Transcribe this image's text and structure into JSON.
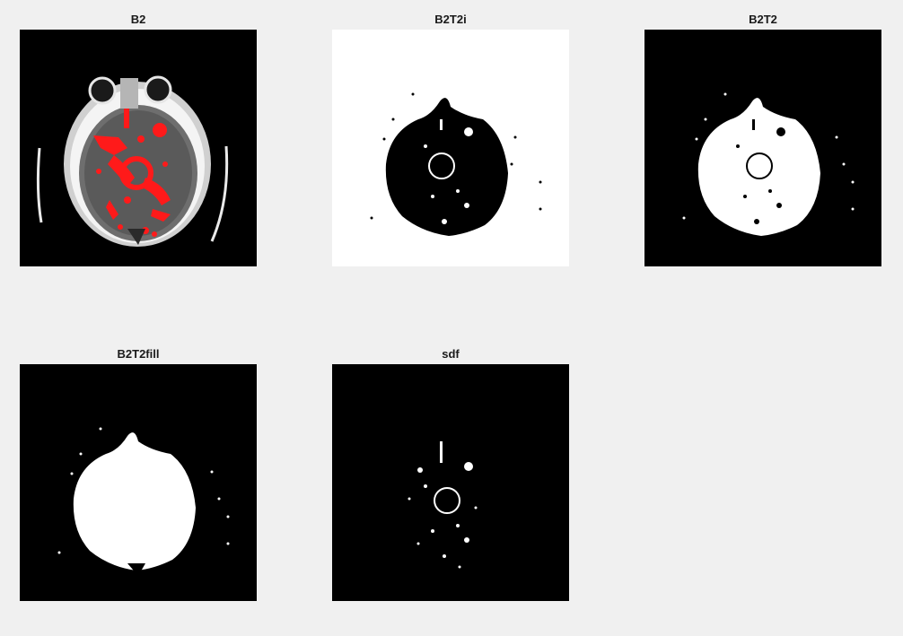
{
  "figure": {
    "panels": [
      {
        "title": "B2",
        "kind": "ct-with-red-overlay",
        "background": "#000000",
        "foreground": "#ffffff",
        "overlay": "#ff0000"
      },
      {
        "title": "B2T2i",
        "kind": "inverted-mask",
        "background": "#ffffff",
        "foreground": "#000000"
      },
      {
        "title": "B2T2",
        "kind": "binary-mask",
        "background": "#000000",
        "foreground": "#ffffff"
      },
      {
        "title": "B2T2fill",
        "kind": "filled-mask",
        "background": "#000000",
        "foreground": "#ffffff"
      },
      {
        "title": "sdf",
        "kind": "sparse-mask",
        "background": "#000000",
        "foreground": "#ffffff"
      }
    ]
  }
}
